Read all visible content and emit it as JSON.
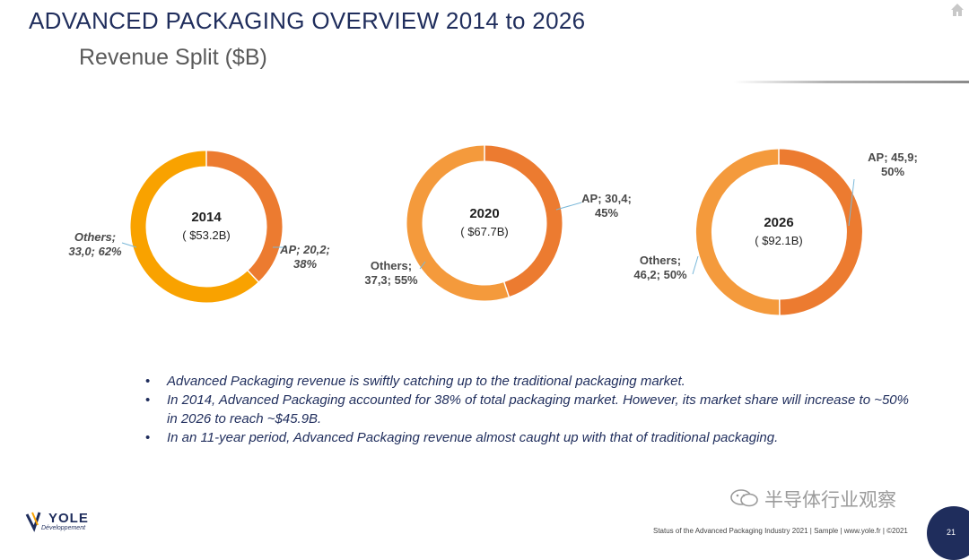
{
  "header": {
    "title": "ADVANCED PACKAGING OVERVIEW 2014 to 2026",
    "subtitle": "Revenue Split ($B)"
  },
  "colors": {
    "ap": "#ec7b30",
    "others": "#f9a200",
    "others_2020": "#f49a3c",
    "title": "#1f2d5c"
  },
  "chart_data": [
    {
      "type": "pie",
      "donut": true,
      "center_label": "2014",
      "center_sublabel": "( $53.2B)",
      "slices": [
        {
          "name": "AP",
          "value": 20.2,
          "percent": 38,
          "label_line1": "AP; 20,2;",
          "label_line2": "38%"
        },
        {
          "name": "Others",
          "value": 33.0,
          "percent": 62,
          "label_line1": "Others;",
          "label_line2": "33,0; 62%"
        }
      ]
    },
    {
      "type": "pie",
      "donut": true,
      "center_label": "2020",
      "center_sublabel": "( $67.7B)",
      "slices": [
        {
          "name": "AP",
          "value": 30.4,
          "percent": 45,
          "label_line1": "AP; 30,4;",
          "label_line2": "45%"
        },
        {
          "name": "Others",
          "value": 37.3,
          "percent": 55,
          "label_line1": "Others;",
          "label_line2": "37,3; 55%"
        }
      ]
    },
    {
      "type": "pie",
      "donut": true,
      "center_label": "2026",
      "center_sublabel": "( $92.1B)",
      "slices": [
        {
          "name": "AP",
          "value": 45.9,
          "percent": 50,
          "label_line1": "AP; 45,9;",
          "label_line2": "50%"
        },
        {
          "name": "Others",
          "value": 46.2,
          "percent": 50,
          "label_line1": "Others;",
          "label_line2": "46,2; 50%"
        }
      ]
    }
  ],
  "bullets": [
    "Advanced Packaging revenue is swiftly catching up to the traditional packaging market.",
    "In 2014, Advanced Packaging accounted for 38% of total packaging market. However, its market share will increase to ~50% in 2026 to reach ~$45.9B.",
    "In an 11-year period, Advanced Packaging revenue almost caught up with that of traditional packaging."
  ],
  "bullet_char": "•",
  "logo": {
    "name": "YOLE",
    "sub": "Développement"
  },
  "footer": {
    "text": "Status of the Advanced Packaging Industry 2021 | Sample | www.yole.fr | ©2021",
    "page": "21"
  },
  "watermark": "半导体行业观察",
  "icons": {
    "home": "home-icon",
    "watermark": "wechat-icon"
  }
}
